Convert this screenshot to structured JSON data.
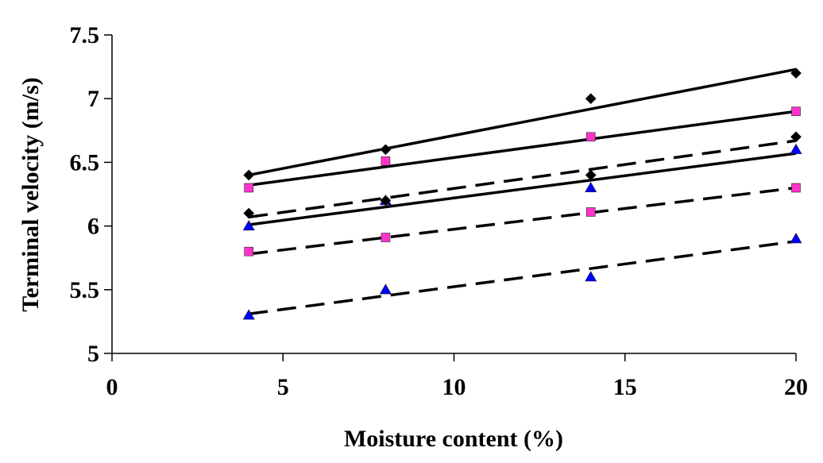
{
  "chart_data": {
    "type": "scatter",
    "title": "",
    "xlabel": "Moisture content (%)",
    "ylabel": "Terminal velocity (m/s)",
    "xlim": [
      0,
      20
    ],
    "ylim": [
      5,
      7.5
    ],
    "xticks": [
      "0",
      "5",
      "10",
      "15",
      "20"
    ],
    "yticks": [
      "5",
      "5.5",
      "6",
      "6.5",
      "7",
      "7.5"
    ],
    "grid": false,
    "legend": "none",
    "x": [
      4,
      8,
      14,
      20
    ],
    "series": [
      {
        "marker": "diamond",
        "color": "#000000",
        "values": [
          6.4,
          6.6,
          7.0,
          7.2
        ],
        "trend": {
          "style": "solid",
          "start": [
            4,
            6.4
          ],
          "end": [
            20,
            7.23
          ]
        }
      },
      {
        "marker": "square",
        "color": "#ff33cc",
        "values": [
          6.3,
          6.51,
          6.7,
          6.9
        ],
        "trend": {
          "style": "solid",
          "start": [
            4,
            6.32
          ],
          "end": [
            20,
            6.9
          ]
        }
      },
      {
        "marker": "triangle",
        "color": "#0000ff",
        "values": [
          6.0,
          6.2,
          6.3,
          6.6
        ],
        "trend": {
          "style": "solid",
          "start": [
            4,
            6.01
          ],
          "end": [
            20,
            6.57
          ]
        }
      },
      {
        "marker": "diamond",
        "color": "#000000",
        "values": [
          6.1,
          6.2,
          6.4,
          6.7
        ],
        "trend": {
          "style": "dashed",
          "start": [
            4,
            6.07
          ],
          "end": [
            20,
            6.67
          ]
        }
      },
      {
        "marker": "square",
        "color": "#ff33cc",
        "values": [
          5.8,
          5.91,
          6.11,
          6.3
        ],
        "trend": {
          "style": "dashed",
          "start": [
            4,
            5.78
          ],
          "end": [
            20,
            6.3
          ]
        }
      },
      {
        "marker": "triangle",
        "color": "#0000ff",
        "values": [
          5.3,
          5.5,
          5.6,
          5.9
        ],
        "trend": {
          "style": "dashed",
          "start": [
            4,
            5.31
          ],
          "end": [
            20,
            5.88
          ]
        }
      }
    ]
  }
}
